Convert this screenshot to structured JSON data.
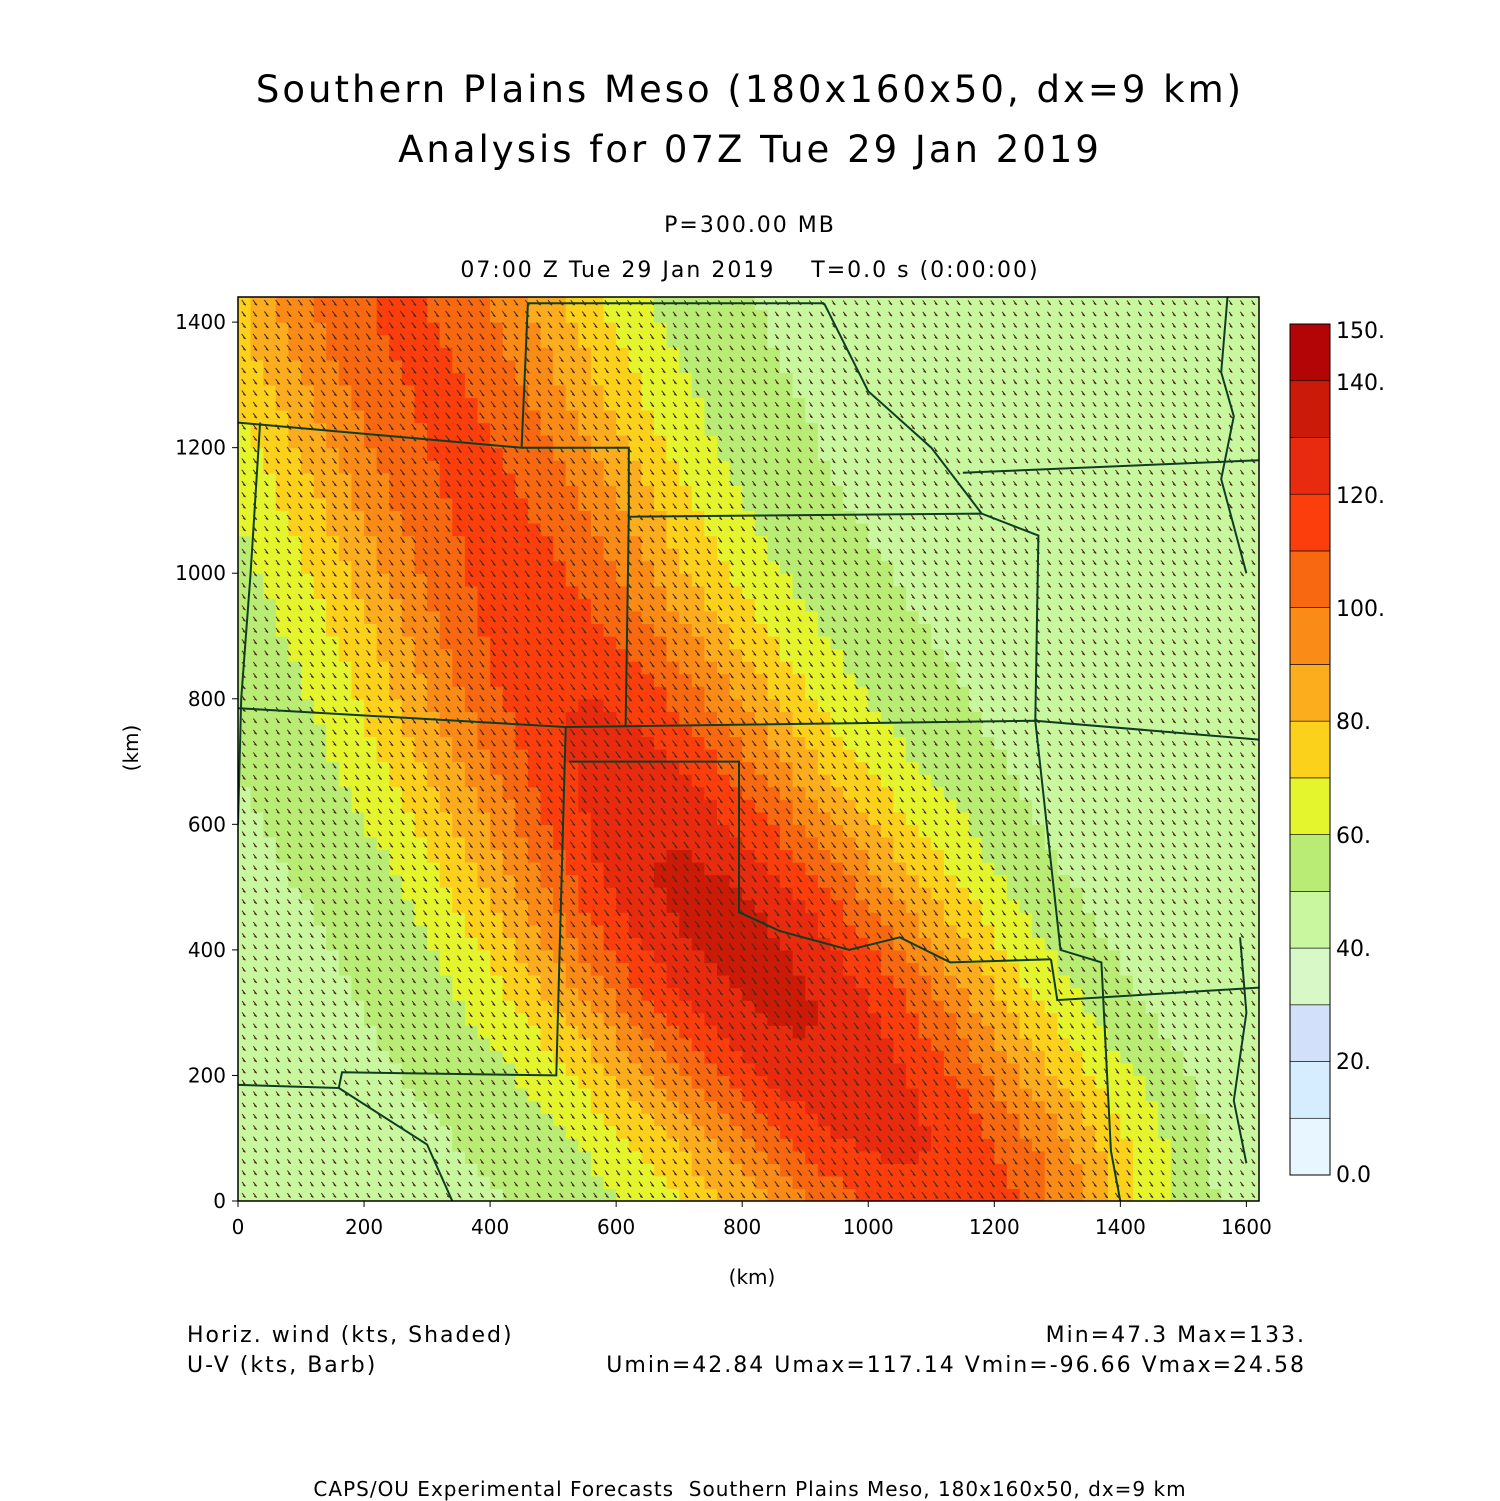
{
  "title": {
    "line1": "Southern Plains Meso (180x160x50, dx=9 km)",
    "line2": "Analysis for 07Z Tue 29 Jan 2019"
  },
  "level_label": "P=300.00 MB",
  "time_label": "07:00 Z Tue 29 Jan 2019    T=0.0 s (0:00:00)",
  "footer": {
    "field1": "Horiz. wind (kts, Shaded)",
    "field2": "U-V (kts, Barb)",
    "stats1": "Min=47.3 Max=133.",
    "stats2": "Umin=42.84 Umax=117.14 Vmin=-96.66 Vmax=24.58",
    "credit": "CAPS/OU Experimental Forecasts  Southern Plains Meso, 180x160x50, dx=9 km"
  },
  "chart_data": {
    "type": "heatmap",
    "xlabel": "(km)",
    "ylabel": "(km)",
    "xlim": [
      0,
      1620
    ],
    "ylim": [
      0,
      1440
    ],
    "x_ticks": [
      "0",
      "200",
      "400",
      "600",
      "800",
      "1000",
      "1200",
      "1400",
      "1600"
    ],
    "y_ticks": [
      "0",
      "200",
      "400",
      "600",
      "800",
      "1000",
      "1200",
      "1400"
    ],
    "field": "horizontal wind speed (kts)",
    "min": 47.3,
    "max": 133,
    "jet_axis_km": [
      [
        250,
        1440
      ],
      [
        500,
        860
      ],
      [
        700,
        520
      ],
      [
        1000,
        160
      ],
      [
        1150,
        0
      ]
    ],
    "colorbar": {
      "labels": [
        "150.",
        "140.",
        "120.",
        "100.",
        "80.",
        "60.",
        "40.",
        "20.",
        "0.0"
      ],
      "bins": [
        {
          "from": 0,
          "to": 10,
          "color": "#e8f6ff"
        },
        {
          "from": 10,
          "to": 20,
          "color": "#d6ecff"
        },
        {
          "from": 20,
          "to": 30,
          "color": "#d2e0fa"
        },
        {
          "from": 30,
          "to": 40,
          "color": "#d8f8c8"
        },
        {
          "from": 40,
          "to": 50,
          "color": "#c9f7a0"
        },
        {
          "from": 50,
          "to": 60,
          "color": "#b8ec74"
        },
        {
          "from": 60,
          "to": 70,
          "color": "#e4f52e"
        },
        {
          "from": 70,
          "to": 80,
          "color": "#fcd11c"
        },
        {
          "from": 80,
          "to": 90,
          "color": "#fbad1e"
        },
        {
          "from": 90,
          "to": 100,
          "color": "#f98b16"
        },
        {
          "from": 100,
          "to": 110,
          "color": "#f76810"
        },
        {
          "from": 110,
          "to": 120,
          "color": "#fb3e0c"
        },
        {
          "from": 120,
          "to": 130,
          "color": "#e82a0e"
        },
        {
          "from": 130,
          "to": 140,
          "color": "#cc1a08"
        },
        {
          "from": 140,
          "to": 150,
          "color": "#b30505"
        }
      ]
    },
    "barb_color": "#4a2a14",
    "boundary_color": "#0f3d24"
  }
}
